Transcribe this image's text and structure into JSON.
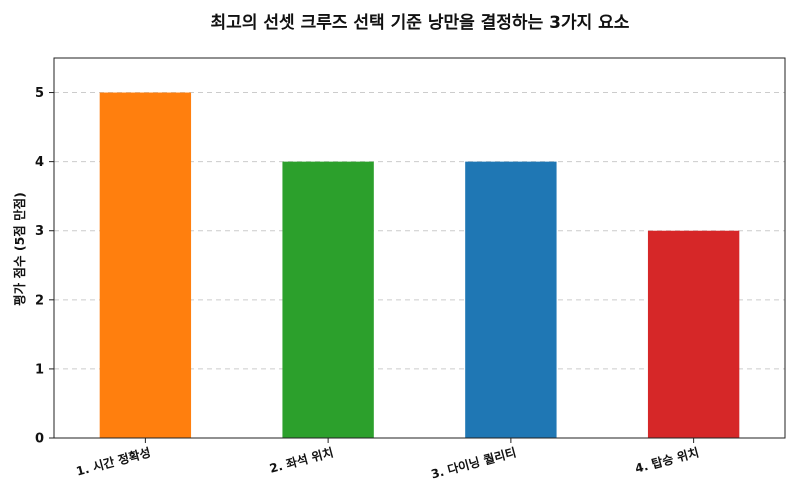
{
  "chart_data": {
    "type": "bar",
    "title": "최고의 선셋 크루즈 선택 기준 낭만을 결정하는 3가지 요소",
    "xlabel": "",
    "ylabel": "평가 점수 (5점 만점)",
    "categories": [
      "1. 시간 정확성",
      "2. 좌석 위치",
      "3. 다이닝 퀄리티",
      "4. 탑승 위치"
    ],
    "values": [
      5,
      4,
      4,
      3
    ],
    "colors": [
      "#ff7f0e",
      "#2ca02c",
      "#1f77b4",
      "#d62728"
    ],
    "ylim": [
      0,
      5.5
    ],
    "yticks": [
      0,
      1,
      2,
      3,
      4,
      5
    ],
    "grid": true,
    "grid_axis": "y",
    "legend": "none"
  }
}
